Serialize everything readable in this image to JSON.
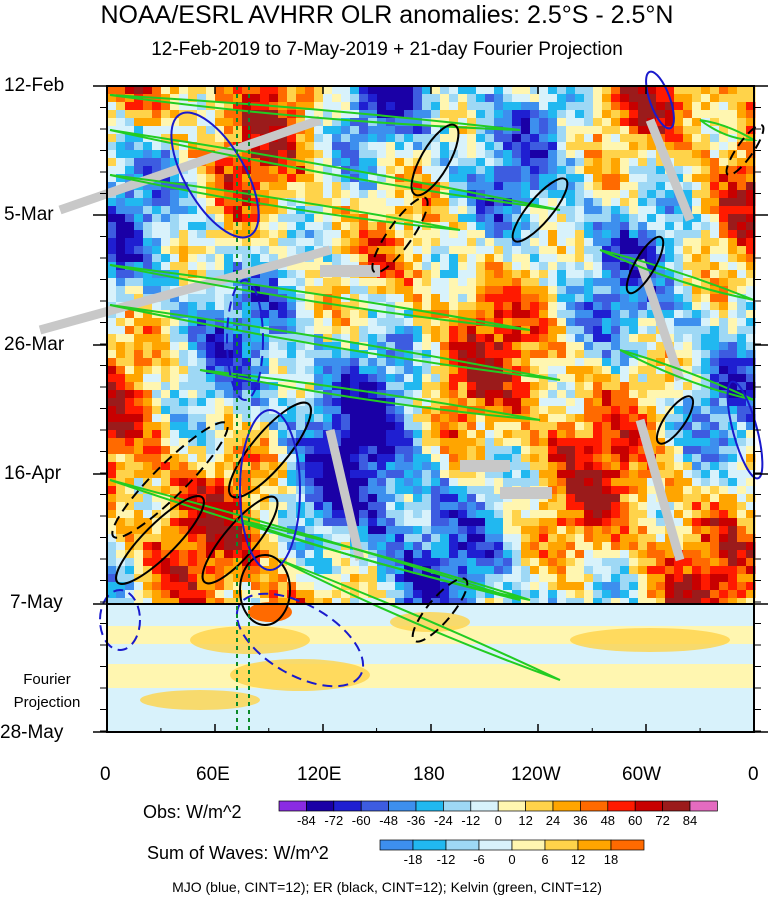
{
  "chart_data": {
    "type": "heatmap",
    "title": "NOAA/ESRL AVHRR OLR anomalies: 2.5°S - 2.5°N",
    "subtitle": "12-Feb-2019 to 7-May-2019 + 21-day Fourier Projection",
    "x_ticks": [
      "0",
      "60E",
      "120E",
      "180",
      "120W",
      "60W",
      "0"
    ],
    "y_ticks": [
      "12-Feb",
      "5-Mar",
      "26-Mar",
      "16-Apr",
      "7-May",
      "28-May"
    ],
    "projection_label_1": "Fourier",
    "projection_label_2": "Projection",
    "obs_colorbar": {
      "label": "Obs: W/m^2",
      "levels": [
        "-84",
        "-72",
        "-60",
        "-48",
        "-36",
        "-24",
        "-12",
        "0",
        "12",
        "24",
        "36",
        "48",
        "60",
        "72",
        "84"
      ],
      "colors": [
        "#8a2be2",
        "#1a00a6",
        "#1f1fd1",
        "#3d5ce0",
        "#3d8fee",
        "#21b8f0",
        "#9ed8f5",
        "#d8f2fb",
        "#fff6b0",
        "#ffd34a",
        "#ffa500",
        "#ff6a00",
        "#ff1a00",
        "#c80000",
        "#9b1b1b",
        "#e46bc0"
      ]
    },
    "waves_colorbar": {
      "label": "Sum of Waves: W/m^2",
      "levels": [
        "-18",
        "-12",
        "-6",
        "0",
        "6",
        "12",
        "18"
      ],
      "colors": [
        "#3d8fee",
        "#21b8f0",
        "#9ed8f5",
        "#d8f2fb",
        "#fff6b0",
        "#ffd34a",
        "#ffa500",
        "#ff6a00"
      ]
    },
    "footer": "MJO (blue, CINT=12); ER (black, CINT=12); Kelvin (green, CINT=12)"
  }
}
